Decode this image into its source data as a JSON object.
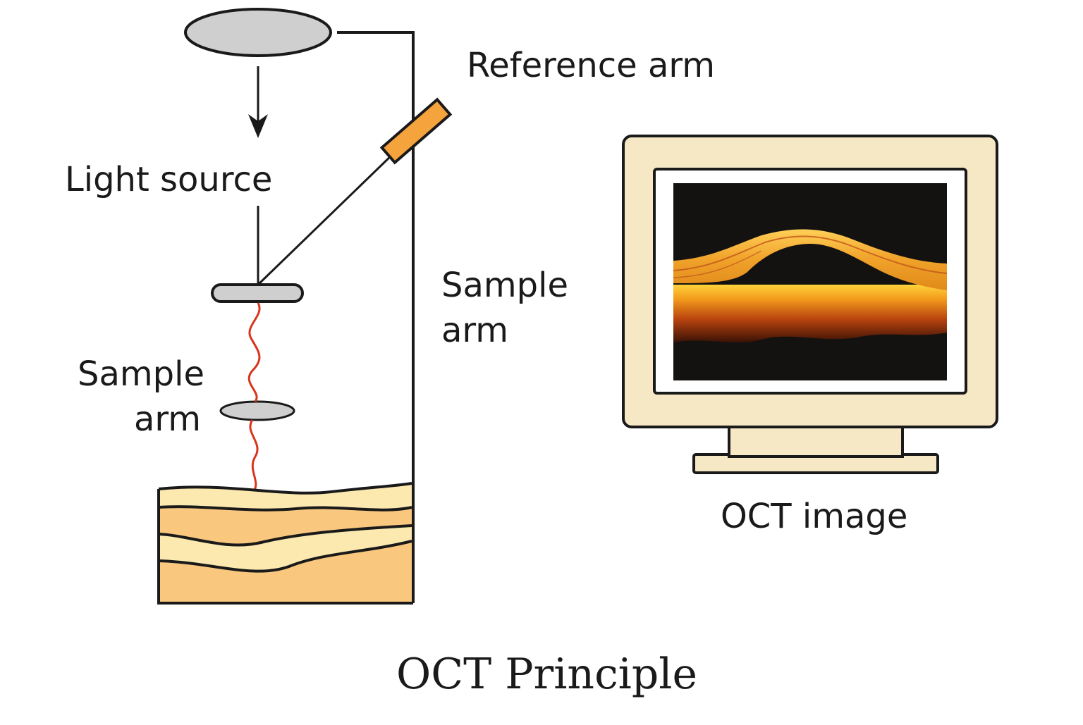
{
  "labels": {
    "reference_arm": "Reference arm",
    "light_source": "Light source",
    "sample_arm_right_line1": "Sample",
    "sample_arm_right_line2": "arm",
    "sample_arm_left_line1": "Sample",
    "sample_arm_left_line2": "arm",
    "oct_image": "OCT image"
  },
  "title": "OCT Principle",
  "colors": {
    "line": "#1a1a1a",
    "lens_fill": "#cfcfcf",
    "mirror": "#f5a33c",
    "light_beam": "#d9341c",
    "tissue_light": "#fce9b0",
    "tissue_dark": "#f9c77e",
    "monitor_body": "#f6e8c4",
    "scan_bg": "#141210",
    "retina_layer": "#f2a31f"
  }
}
